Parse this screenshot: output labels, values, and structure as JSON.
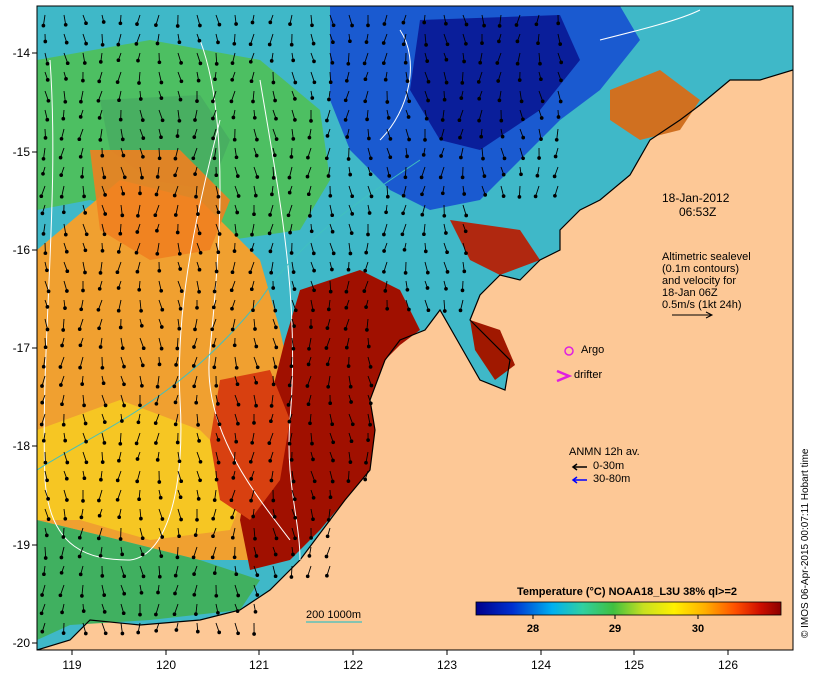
{
  "timestamp": {
    "date": "18-Jan-2012",
    "time": "06:53Z"
  },
  "altimetry": {
    "lines": [
      "Altimetric sealevel",
      "(0.1m contours)",
      "and velocity for",
      "18-Jan 06Z",
      "0.5m/s (1kt 24h)"
    ]
  },
  "argo_label": "Argo",
  "drifter_label": "drifter",
  "anmn": {
    "title": "ANMN 12h av.",
    "shallow": "0-30m",
    "deep": "30-80m"
  },
  "colorbar": {
    "title": "Temperature (°C) NOAA18_L3U 38% ql>=2",
    "ticks": [
      "28",
      "29",
      "30"
    ]
  },
  "isobath_label": "200  1000m",
  "credit": "© IMOS 06-Apr-2015 00:07:11 Hobart time",
  "axes": {
    "y_ticks": [
      "-14",
      "-15",
      "-16",
      "-17",
      "-18",
      "-19",
      "-20"
    ],
    "x_ticks": [
      "119",
      "120",
      "121",
      "122",
      "123",
      "124",
      "125",
      "126"
    ]
  },
  "colors": {
    "land": "#fdc896",
    "argo": "#e020e0",
    "drifter": "#e020e0",
    "anmn_deep": "#0000ff",
    "isobath": "#40c0c0"
  },
  "map_extent": {
    "lon": [
      118.6,
      126.6
    ],
    "lat": [
      -20.1,
      -13.5
    ]
  }
}
